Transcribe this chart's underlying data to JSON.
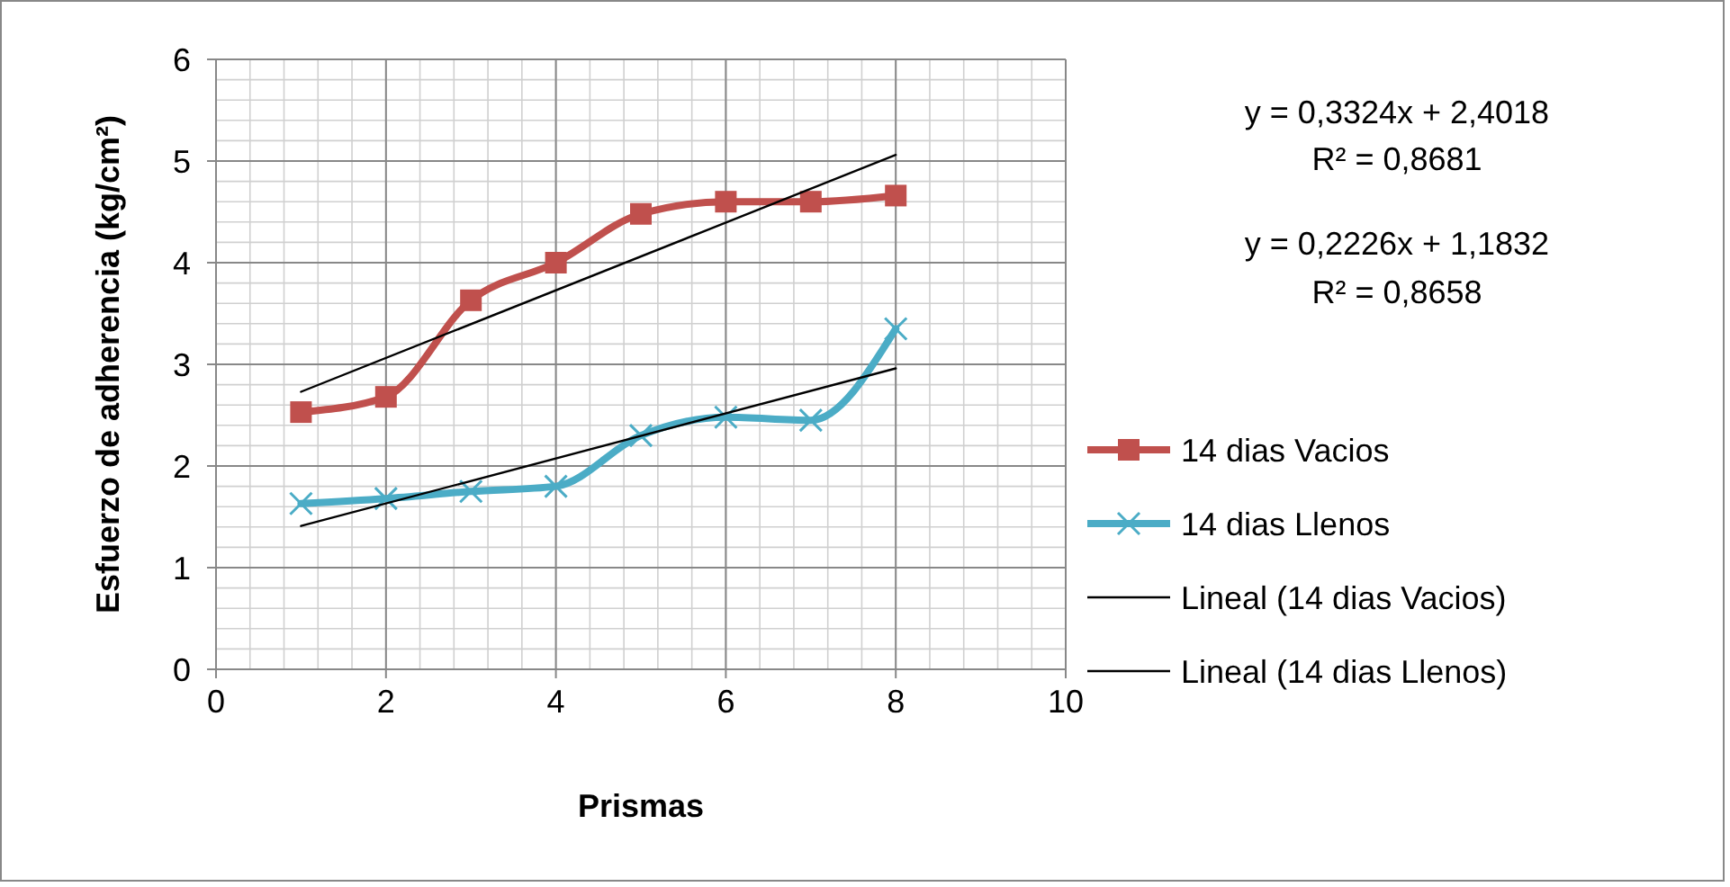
{
  "chart_data": {
    "type": "line",
    "xlabel": "Prismas",
    "ylabel": "Esfuerzo de adherencia (kg/cm²)",
    "xlim": [
      0,
      10
    ],
    "xticks": [
      0,
      2,
      4,
      6,
      8,
      10
    ],
    "ylim": [
      0,
      6
    ],
    "yticks": [
      0,
      1,
      2,
      3,
      4,
      5,
      6
    ],
    "grid": true,
    "legend": "right",
    "line_style": "solid",
    "annotations": [
      "y = 0,3324x + 2,4018",
      "R² = 0,8681",
      "y = 0,2226x + 1,1832",
      "R² = 0,8658"
    ],
    "series": [
      {
        "name": "14 dias Vacios",
        "color": "#c0504d",
        "marker": "square",
        "x": [
          1,
          2,
          3,
          4,
          5,
          6,
          7,
          8
        ],
        "values": [
          2.53,
          2.68,
          3.63,
          4.0,
          4.48,
          4.6,
          4.6,
          4.66
        ]
      },
      {
        "name": "14 dias Llenos",
        "color": "#4bacc6",
        "marker": "cross",
        "x": [
          1,
          2,
          3,
          4,
          5,
          6,
          7,
          8
        ],
        "values": [
          1.63,
          1.68,
          1.75,
          1.8,
          2.3,
          2.48,
          2.45,
          3.35
        ]
      },
      {
        "name": "Lineal (14 dias Vacios)",
        "color": "#000000",
        "marker": "none",
        "x": [
          1,
          8
        ],
        "values": [
          2.73,
          5.06
        ]
      },
      {
        "name": "Lineal (14 dias Llenos)",
        "color": "#000000",
        "marker": "none",
        "x": [
          1,
          8
        ],
        "values": [
          1.41,
          2.96
        ]
      }
    ]
  }
}
